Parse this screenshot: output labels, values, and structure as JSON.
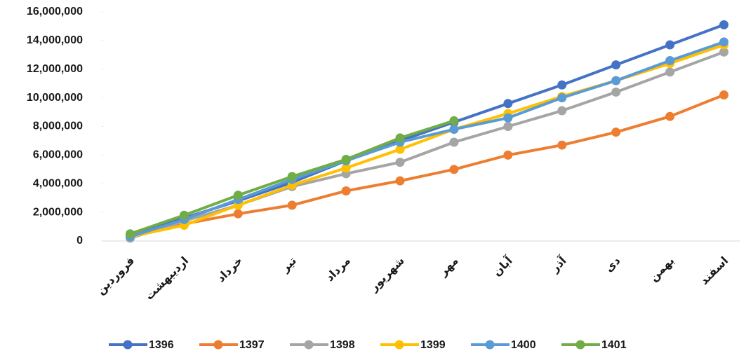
{
  "chart_data": {
    "type": "line",
    "categories": [
      "فروردین",
      "اردیبهشت",
      "خرداد",
      "تیر",
      "مرداد",
      "شهریور",
      "مهر",
      "آبان",
      "آذر",
      "دی",
      "بهمن",
      "اسفند"
    ],
    "series": [
      {
        "name": "1396",
        "color": "#4472c4",
        "values": [
          400000,
          1600000,
          2800000,
          4100000,
          5600000,
          7000000,
          8300000,
          9600000,
          10900000,
          12300000,
          13700000,
          15100000
        ]
      },
      {
        "name": "1397",
        "color": "#ed7d31",
        "values": [
          400000,
          1200000,
          1900000,
          2500000,
          3500000,
          4200000,
          5000000,
          6000000,
          6700000,
          7600000,
          8700000,
          10200000
        ]
      },
      {
        "name": "1398",
        "color": "#a5a5a5",
        "values": [
          200000,
          1400000,
          2500000,
          3800000,
          4700000,
          5500000,
          6900000,
          8000000,
          9100000,
          10400000,
          11800000,
          13200000
        ]
      },
      {
        "name": "1399",
        "color": "#ffc000",
        "values": [
          300000,
          1100000,
          2500000,
          3900000,
          5100000,
          6400000,
          7800000,
          8900000,
          10100000,
          11200000,
          12400000,
          13700000
        ]
      },
      {
        "name": "1400",
        "color": "#5b9bd5",
        "values": [
          300000,
          1500000,
          2900000,
          4300000,
          5600000,
          6900000,
          7800000,
          8600000,
          10000000,
          11200000,
          12600000,
          13900000
        ]
      },
      {
        "name": "1401",
        "color": "#70ad47",
        "values": [
          500000,
          1800000,
          3200000,
          4500000,
          5700000,
          7200000,
          8400000,
          null,
          null,
          null,
          null,
          null
        ]
      }
    ],
    "ylim": [
      0,
      16000000
    ],
    "yticks": [
      0,
      {
        "value": 2000000,
        "label": "2,000,000"
      },
      {
        "value": 4000000,
        "label": "4,000,000"
      },
      {
        "value": 6000000,
        "label": "6,000,000"
      },
      {
        "value": 8000000,
        "label": "8,000,000"
      },
      {
        "value": 10000000,
        "label": "10,000,000"
      },
      {
        "value": 12000000,
        "label": "12,000,000"
      },
      {
        "value": 14000000,
        "label": "14,000,000"
      },
      {
        "value": 16000000,
        "label": "16,000,000"
      }
    ],
    "legend": "bottom",
    "grid": false
  }
}
